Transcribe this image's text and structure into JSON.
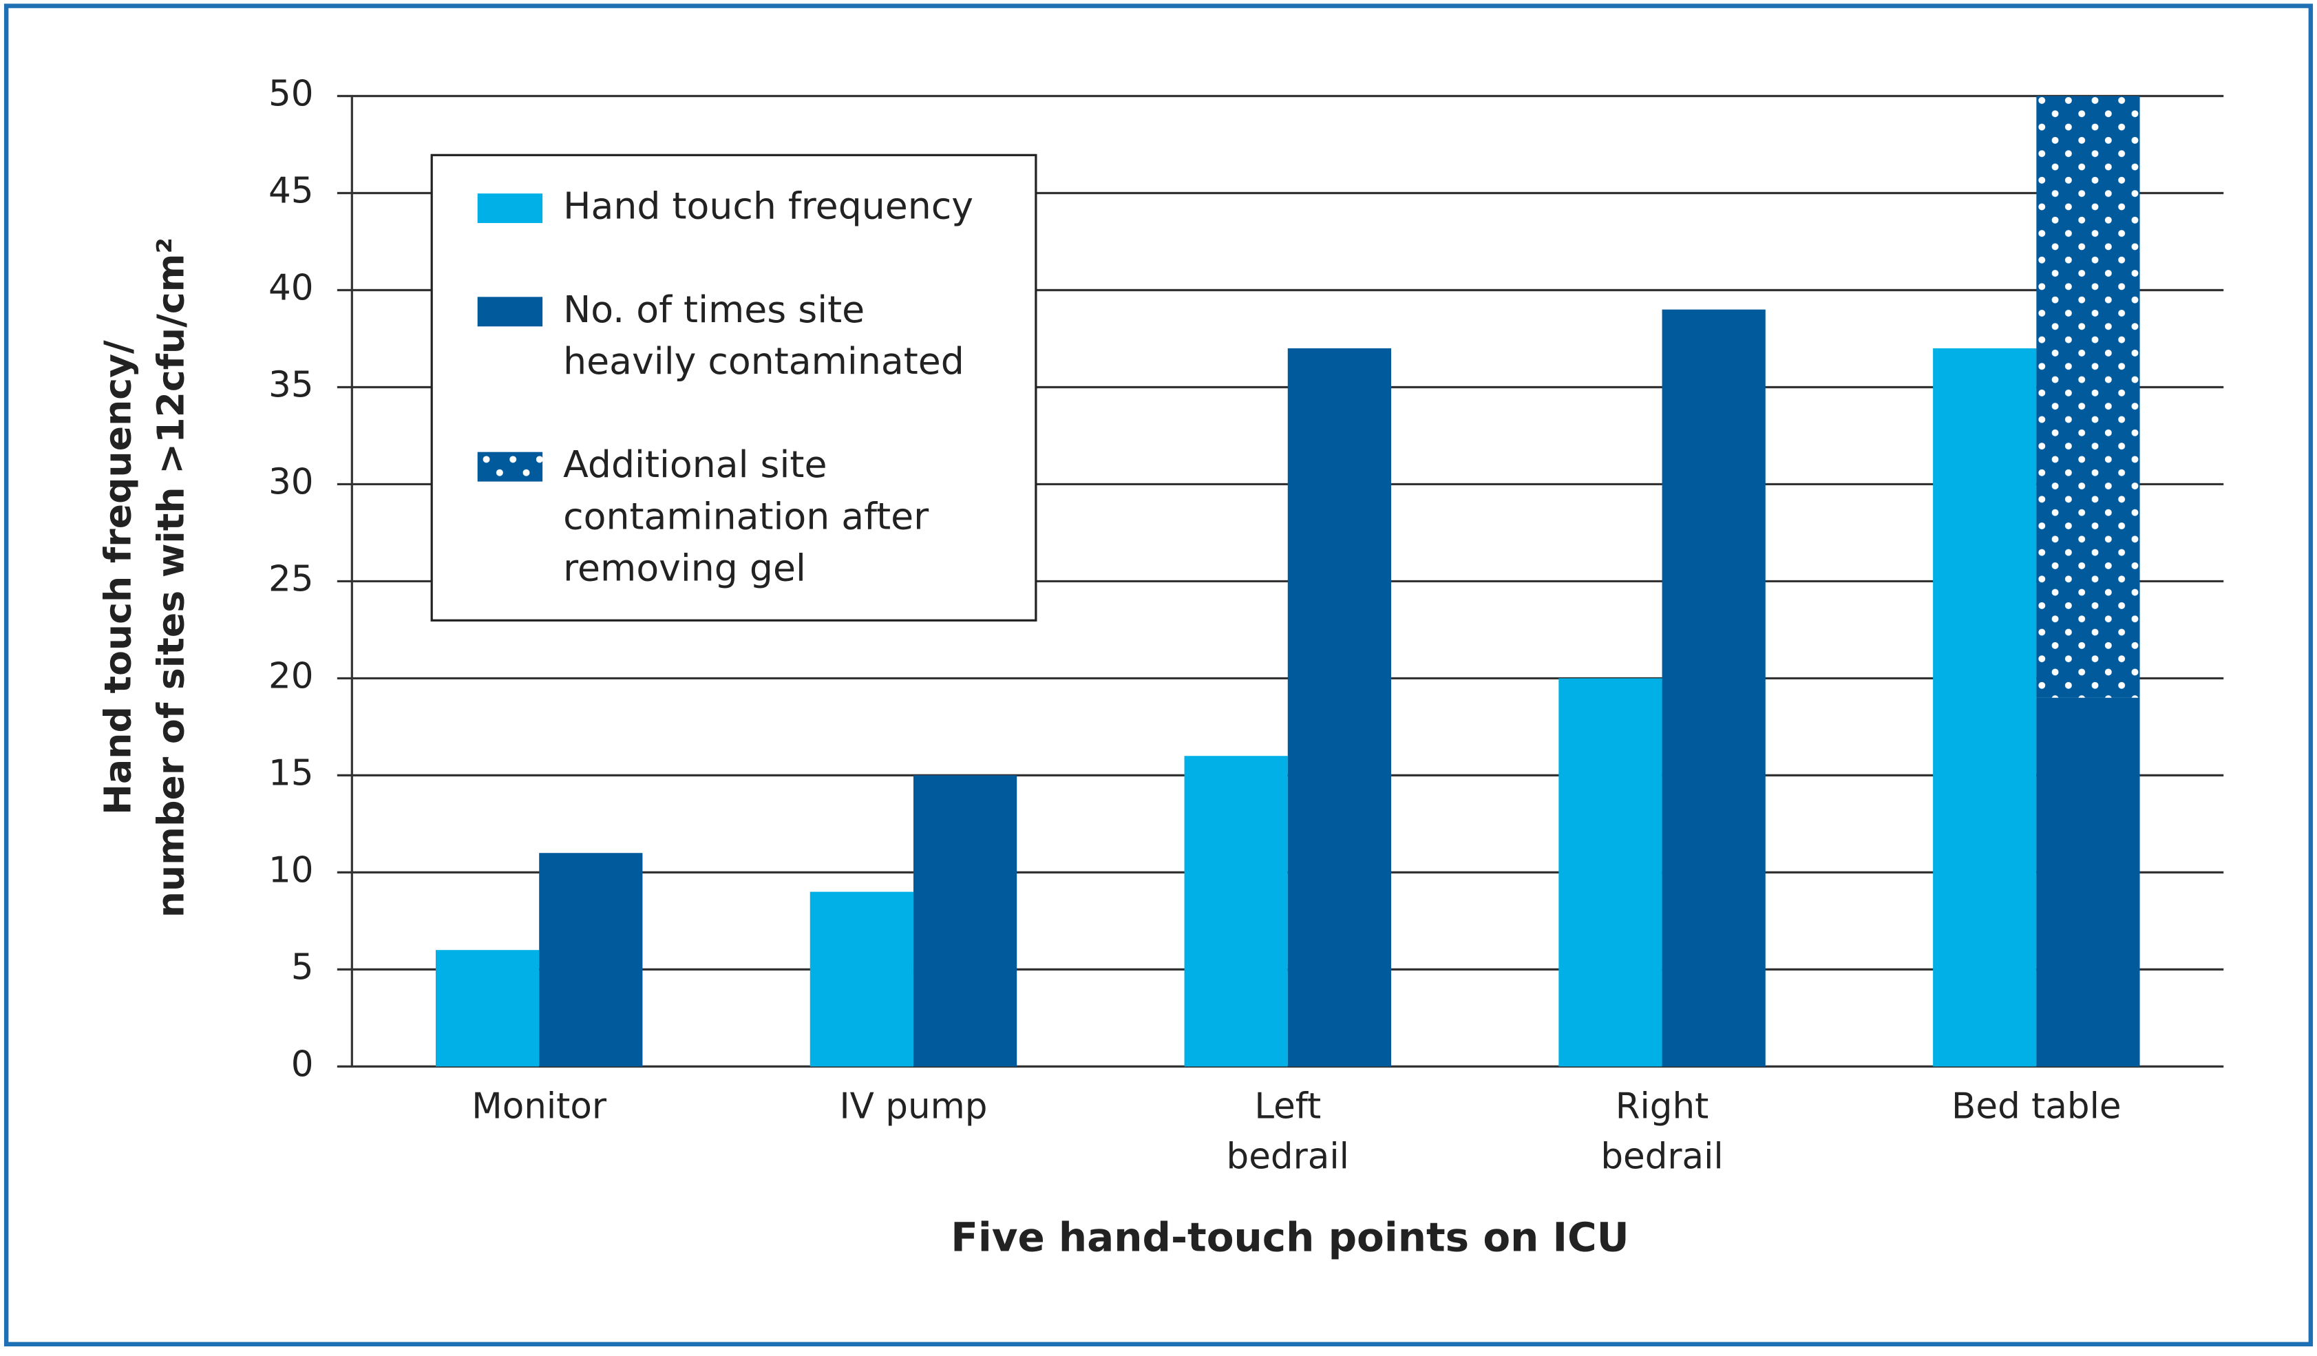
{
  "chart_data": {
    "type": "bar",
    "x_label": "Five hand-touch points on ICU",
    "y_label": "Hand touch frequency/\nnumber of sites with >12cfu/cm²",
    "categories": [
      "Monitor",
      "IV pump",
      "Left\nbedrail",
      "Right\nbedrail",
      "Bed table"
    ],
    "series": [
      {
        "name": "Hand touch frequency",
        "color": "#00b0e6",
        "values": [
          6,
          9,
          16,
          20,
          37
        ]
      },
      {
        "name": "No. of times site\nheavily contaminated",
        "color": "#005a9c",
        "values": [
          11,
          15,
          37,
          39,
          19
        ]
      },
      {
        "name": "Additional site\ncontamination after\nremoving gel",
        "color": "#005a9c",
        "pattern": "dots",
        "stack_on": 1,
        "values": [
          null,
          null,
          null,
          null,
          31
        ]
      }
    ],
    "ylim": [
      0,
      50
    ],
    "yticks": [
      0,
      5,
      10,
      15,
      20,
      25,
      30,
      35,
      40,
      45,
      50
    ],
    "grid": true
  }
}
